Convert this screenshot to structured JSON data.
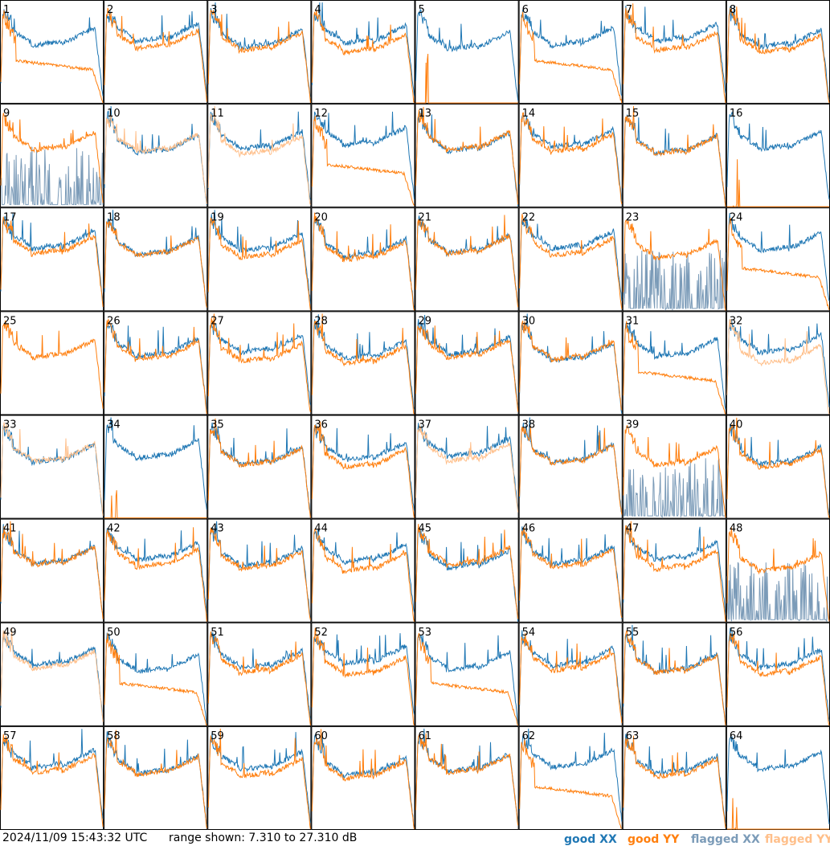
{
  "chart_data": {
    "type": "line",
    "layout": "8x8 grid of small multiples",
    "panels": [
      "1",
      "2",
      "3",
      "4",
      "5",
      "6",
      "7",
      "8",
      "9",
      "10",
      "11",
      "12",
      "13",
      "14",
      "15",
      "16",
      "17",
      "18",
      "19",
      "20",
      "21",
      "22",
      "23",
      "24",
      "25",
      "26",
      "27",
      "28",
      "29",
      "30",
      "31",
      "32",
      "33",
      "34",
      "35",
      "36",
      "37",
      "38",
      "39",
      "40",
      "41",
      "42",
      "43",
      "44",
      "45",
      "46",
      "47",
      "48",
      "49",
      "50",
      "51",
      "52",
      "53",
      "54",
      "55",
      "56",
      "57",
      "58",
      "59",
      "60",
      "61",
      "62",
      "63",
      "64"
    ],
    "yrange_db": [
      7.31,
      27.31
    ],
    "series": [
      {
        "name": "good XX",
        "color": "#1f77b4"
      },
      {
        "name": "good YY",
        "color": "#ff7f0e"
      },
      {
        "name": "flagged XX",
        "color": "#7b9bb8"
      },
      {
        "name": "flagged YY",
        "color": "#ffbf8a"
      }
    ],
    "flagged_xx_panels": [
      9,
      23,
      39,
      48
    ],
    "flagged_yy_panels": [
      10,
      11,
      32,
      33,
      37,
      49
    ],
    "yy_collapsed_panels": [
      5,
      16,
      34,
      64
    ],
    "xx_missing_panels": [
      25
    ],
    "yy_decay_panels": [
      1,
      6,
      12,
      24,
      31,
      50,
      53,
      62
    ]
  },
  "footer": {
    "timestamp": "2024/11/09 15:43:32 UTC",
    "range": "range shown: 7.310 to 27.310 dB",
    "legend": [
      "good XX",
      "good YY",
      "flagged XX",
      "flagged YY"
    ]
  }
}
